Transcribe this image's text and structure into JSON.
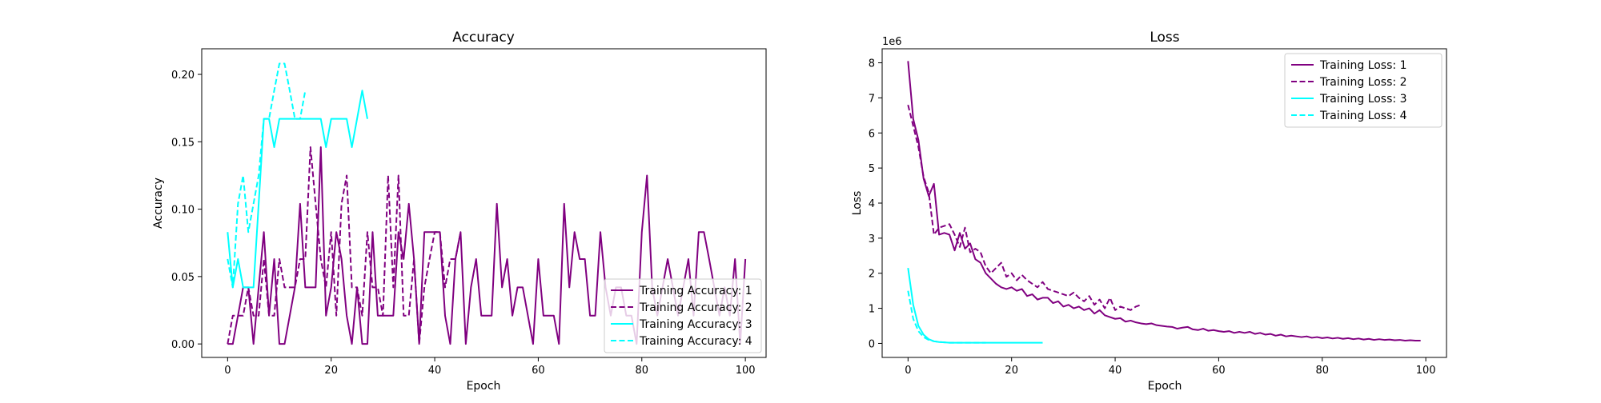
{
  "chart_data": [
    {
      "type": "line",
      "title": "Accuracy",
      "xlabel": "Epoch",
      "ylabel": "Accuracy",
      "xlim": [
        -5,
        104
      ],
      "ylim": [
        -0.01,
        0.219
      ],
      "xticks": [
        "0",
        "20",
        "40",
        "60",
        "80",
        "100"
      ],
      "yticks": [
        "0.00",
        "0.05",
        "0.10",
        "0.15",
        "0.20"
      ],
      "exponent_label": "",
      "legend_position": "lower-right",
      "grid": false,
      "series": [
        {
          "name": "Training Accuracy: 1",
          "color": "#800080",
          "dash": "solid",
          "values": [
            0,
            0,
            0.021,
            0.042,
            0.042,
            0,
            0.042,
            0.083,
            0.021,
            0.063,
            0,
            0,
            0.021,
            0.042,
            0.104,
            0.042,
            0.042,
            0.042,
            0.146,
            0.021,
            0.042,
            0.083,
            0.063,
            0.021,
            0,
            0.042,
            0,
            0,
            0.083,
            0.021,
            0.021,
            0.021,
            0.021,
            0.083,
            0.063,
            0.104,
            0.063,
            0,
            0.083,
            0.083,
            0.083,
            0.083,
            0.021,
            0,
            0.063,
            0.083,
            0,
            0.042,
            0.063,
            0.021,
            0.021,
            0.021,
            0.104,
            0.042,
            0.063,
            0.021,
            0.042,
            0.042,
            0.021,
            0,
            0.063,
            0.021,
            0.021,
            0.021,
            0,
            0.104,
            0.042,
            0.083,
            0.063,
            0.063,
            0.021,
            0.021,
            0.083,
            0.042,
            0.021,
            0.042,
            0.042,
            0.021,
            0.021,
            0,
            0.083,
            0.125,
            0.042,
            0.021,
            0.042,
            0.063,
            0.042,
            0.021,
            0.042,
            0.063,
            0.021,
            0.083,
            0.083,
            0.063,
            0.042,
            0.021,
            0.042,
            0.021,
            0.063,
            0,
            0.063
          ]
        },
        {
          "name": "Training Accuracy: 2",
          "color": "#800080",
          "dash": "dashed",
          "values": [
            0,
            0.021,
            0.021,
            0.021,
            0.042,
            0.021,
            0.021,
            0.063,
            0.021,
            0.021,
            0.063,
            0.042,
            0.042,
            0.042,
            0.063,
            0.063,
            0.146,
            0.104,
            0.063,
            0.042,
            0.083,
            0.021,
            0.104,
            0.125,
            0.042,
            0.042,
            0.021,
            0.083,
            0.042,
            0.042,
            0.021,
            0.125,
            0.042,
            0.125,
            0.021,
            0.021,
            0.063,
            0,
            0.042,
            0.063,
            0.083,
            0.083,
            0.042,
            0.063,
            0.063,
            0.083
          ]
        },
        {
          "name": "Training Accuracy: 3",
          "color": "#00ffff",
          "dash": "solid",
          "values": [
            0.083,
            0.042,
            0.063,
            0.042,
            0.042,
            0.042,
            0.104,
            0.167,
            0.167,
            0.146,
            0.167,
            0.167,
            0.167,
            0.167,
            0.167,
            0.167,
            0.167,
            0.167,
            0.167,
            0.146,
            0.167,
            0.167,
            0.167,
            0.167,
            0.146,
            0.167,
            0.188,
            0.167
          ]
        },
        {
          "name": "Training Accuracy: 4",
          "color": "#00ffff",
          "dash": "dashed",
          "values": [
            0.063,
            0.042,
            0.104,
            0.125,
            0.083,
            0.104,
            0.125,
            0.167,
            0.167,
            0.188,
            0.208,
            0.208,
            0.188,
            0.167,
            0.167,
            0.188
          ]
        }
      ]
    },
    {
      "type": "line",
      "title": "Loss",
      "xlabel": "Epoch",
      "ylabel": "Loss",
      "xlim": [
        -5,
        104
      ],
      "ylim": [
        -0.4,
        8.4
      ],
      "xticks": [
        "0",
        "20",
        "40",
        "60",
        "80",
        "100"
      ],
      "yticks": [
        "0",
        "1",
        "2",
        "3",
        "4",
        "5",
        "6",
        "7",
        "8"
      ],
      "exponent_label": "1e6",
      "legend_position": "upper-right",
      "grid": false,
      "series": [
        {
          "name": "Training Loss: 1",
          "color": "#800080",
          "dash": "solid",
          "values": [
            8.05,
            6.4,
            5.8,
            4.7,
            4.2,
            4.55,
            3.1,
            3.15,
            3.1,
            2.65,
            3.15,
            2.7,
            2.85,
            2.4,
            2.3,
            2.0,
            1.85,
            1.7,
            1.6,
            1.55,
            1.6,
            1.5,
            1.55,
            1.35,
            1.4,
            1.25,
            1.3,
            1.3,
            1.15,
            1.2,
            1.05,
            1.1,
            1.0,
            1.05,
            0.95,
            1.0,
            0.85,
            0.95,
            0.8,
            0.75,
            0.7,
            0.72,
            0.62,
            0.65,
            0.6,
            0.57,
            0.55,
            0.57,
            0.52,
            0.5,
            0.48,
            0.47,
            0.42,
            0.45,
            0.47,
            0.4,
            0.38,
            0.42,
            0.36,
            0.38,
            0.35,
            0.33,
            0.35,
            0.3,
            0.33,
            0.3,
            0.33,
            0.27,
            0.3,
            0.25,
            0.27,
            0.22,
            0.25,
            0.2,
            0.22,
            0.2,
            0.18,
            0.2,
            0.16,
            0.18,
            0.15,
            0.17,
            0.14,
            0.16,
            0.13,
            0.15,
            0.12,
            0.14,
            0.11,
            0.13,
            0.1,
            0.12,
            0.1,
            0.11,
            0.09,
            0.1,
            0.08,
            0.09,
            0.08,
            0.08
          ]
        },
        {
          "name": "Training Loss: 2",
          "color": "#800080",
          "dash": "dashed",
          "values": [
            6.8,
            6.2,
            5.6,
            4.75,
            4.3,
            3.1,
            3.3,
            3.35,
            3.4,
            3.1,
            2.75,
            3.3,
            2.6,
            2.7,
            2.6,
            2.2,
            2.0,
            2.15,
            2.3,
            1.9,
            2.0,
            1.8,
            1.95,
            1.8,
            1.7,
            1.6,
            1.75,
            1.55,
            1.5,
            1.45,
            1.4,
            1.35,
            1.45,
            1.3,
            1.2,
            1.35,
            1.1,
            1.25,
            1.0,
            1.3,
            0.95,
            1.05,
            1.0,
            0.95,
            1.05,
            1.1
          ]
        },
        {
          "name": "Training Loss: 3",
          "color": "#00ffff",
          "dash": "solid",
          "values": [
            2.15,
            1.1,
            0.5,
            0.25,
            0.12,
            0.06,
            0.04,
            0.03,
            0.02,
            0.02,
            0.02,
            0.02,
            0.02,
            0.02,
            0.02,
            0.02,
            0.02,
            0.02,
            0.02,
            0.02,
            0.02,
            0.02,
            0.02,
            0.02,
            0.02,
            0.02,
            0.02
          ]
        },
        {
          "name": "Training Loss: 4",
          "color": "#00ffff",
          "dash": "dashed",
          "values": [
            1.5,
            0.7,
            0.35,
            0.18,
            0.1,
            0.06,
            0.04,
            0.03,
            0.02,
            0.02,
            0.02,
            0.02,
            0.02,
            0.02,
            0.02,
            0.02
          ]
        }
      ]
    }
  ]
}
